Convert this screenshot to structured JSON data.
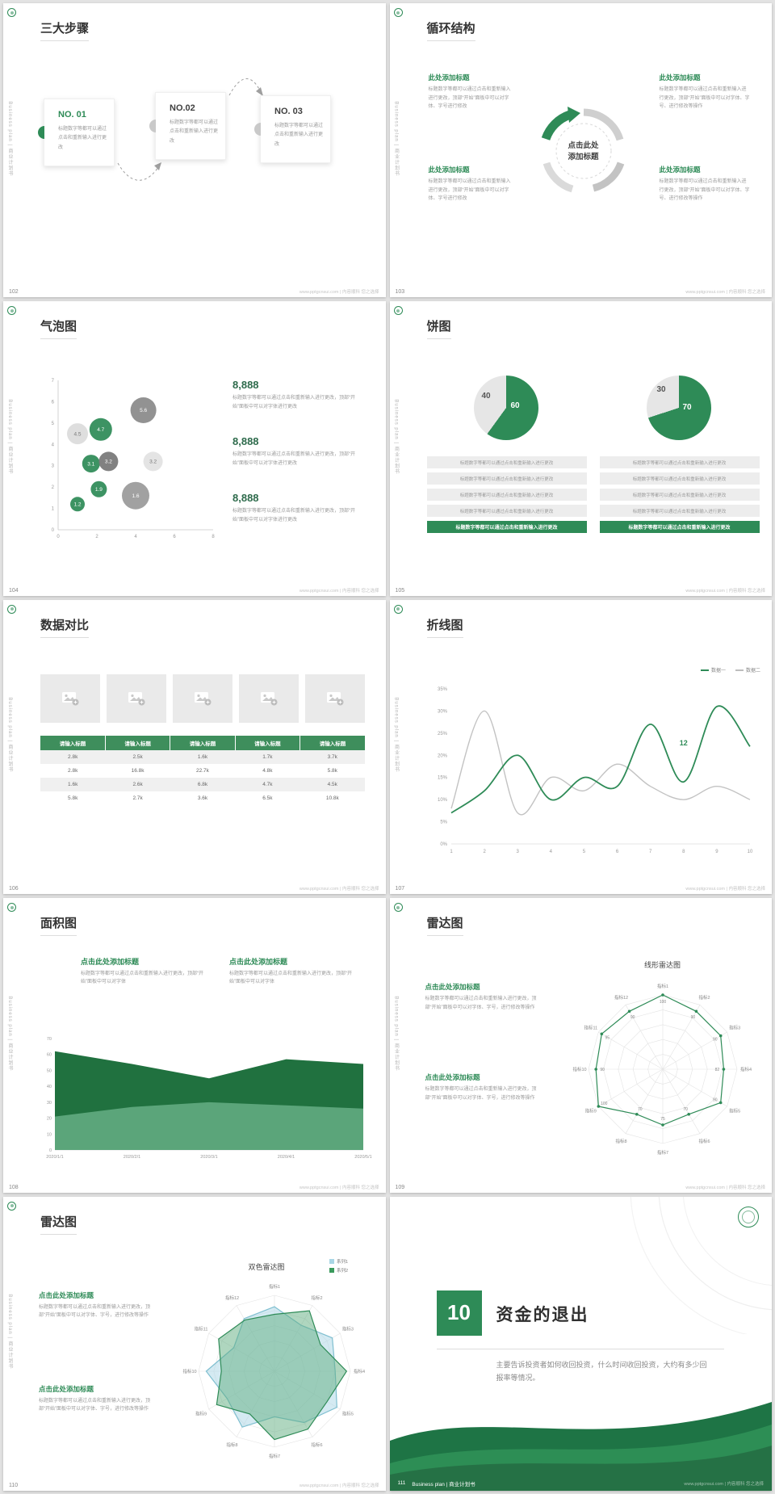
{
  "meta": {
    "accent": "#2e8b57",
    "sidebar_text": "Business plan | 商业计划书",
    "footer_site": "www.pptgcnsui.com | 内容顺科 您之选择"
  },
  "slides": {
    "s102": {
      "page": "102",
      "title": "三大步骤",
      "steps": [
        {
          "no": "NO. 01",
          "body": "标题数字等都可以通过点击和重新输入进行更改"
        },
        {
          "no": "NO.02",
          "body": "标题数字等都可以通过点击和重新输入进行更改"
        },
        {
          "no": "NO. 03",
          "body": "标题数字等都可以通过点击和重新输入进行更改"
        }
      ]
    },
    "s103": {
      "page": "103",
      "title": "循环结构",
      "center": "点击此处添加标题",
      "items": [
        {
          "head": "此处添加标题",
          "body": "标题数字等都可以通过点击和重新输入进行更改，顶部“开始”面板中可以对字体、字号进行修改"
        },
        {
          "head": "此处添加标题",
          "body": "标题数字等都可以通过点击和重新输入进行更改，顶部“开始”面板中可以对字体、字号进行修改"
        },
        {
          "head": "此处添加标题",
          "body": "标题数字等都可以通过点击和重新输入进行更改，顶部“开始”面板中可以对字体、字号、进行修改等操作"
        },
        {
          "head": "此处添加标题",
          "body": "标题数字等都可以通过点击和重新输入进行更改，顶部“开始”面板中可以对字体、字号、进行修改等操作"
        }
      ]
    },
    "s104": {
      "page": "104",
      "title": "气泡图",
      "stats": [
        {
          "value": "8,888",
          "body": "标题数字等都可以通过点击和重新输入进行更改，顶部“开始”面板中可以对字体进行更改"
        },
        {
          "value": "8,888",
          "body": "标题数字等都可以通过点击和重新输入进行更改，顶部“开始”面板中可以对字体进行更改"
        },
        {
          "value": "8,888",
          "body": "标题数字等都可以通过点击和重新输入进行更改，顶部“开始”面板中可以对字体进行更改"
        }
      ],
      "chart": {
        "type": "bubble",
        "xmax": 8,
        "ymax": 7,
        "bubbles": [
          {
            "x": 1.0,
            "y": 4.5,
            "r": 13,
            "v": "4.5",
            "c": "#dcdcdc",
            "tc": "#777777"
          },
          {
            "x": 2.2,
            "y": 4.7,
            "r": 14,
            "v": "4.7",
            "c": "#2e8b57",
            "tc": "#ffffff"
          },
          {
            "x": 4.4,
            "y": 5.6,
            "r": 16,
            "v": "5.6",
            "c": "#8a8a8a",
            "tc": "#ffffff"
          },
          {
            "x": 1.7,
            "y": 3.1,
            "r": 11,
            "v": "3.1",
            "c": "#2e8b57",
            "tc": "#ffffff"
          },
          {
            "x": 2.6,
            "y": 3.2,
            "r": 12,
            "v": "3.2",
            "c": "#777777",
            "tc": "#ffffff"
          },
          {
            "x": 4.9,
            "y": 3.2,
            "r": 12,
            "v": "3.2",
            "c": "#e2e2e2",
            "tc": "#777777"
          },
          {
            "x": 2.1,
            "y": 1.9,
            "r": 10,
            "v": "1.9",
            "c": "#2e8b57",
            "tc": "#ffffff"
          },
          {
            "x": 1.0,
            "y": 1.2,
            "r": 9,
            "v": "1.2",
            "c": "#2e8b57",
            "tc": "#ffffff"
          },
          {
            "x": 4.0,
            "y": 1.6,
            "r": 17,
            "v": "1.6",
            "c": "#9a9a9a",
            "tc": "#ffffff"
          }
        ]
      }
    },
    "s105": {
      "page": "105",
      "title": "饼图",
      "pies": [
        {
          "type": "pie",
          "pct": 60,
          "label_main": "60",
          "label_rest": "40"
        },
        {
          "type": "pie",
          "pct": 70,
          "label_main": "70",
          "label_rest": "30"
        }
      ],
      "bars": [
        [
          "标题数字等都可以通过点击和重新输入进行更改",
          "标题数字等都可以通过点击和重新输入进行更改",
          "标题数字等都可以通过点击和重新输入进行更改",
          "标题数字等都可以通过点击和重新输入进行更改",
          "标题数字等都可以通过点击和重新输入进行更改"
        ],
        [
          "标题数字等都可以通过点击和重新输入进行更改",
          "标题数字等都可以通过点击和重新输入进行更改",
          "标题数字等都可以通过点击和重新输入进行更改",
          "标题数字等都可以通过点击和重新输入进行更改",
          "标题数字等都可以通过点击和重新输入进行更改"
        ]
      ]
    },
    "s106": {
      "page": "106",
      "title": "数据对比",
      "table": {
        "headers": [
          "请输入标题",
          "请输入标题",
          "请输入标题",
          "请输入标题",
          "请输入标题"
        ],
        "rows": [
          [
            "2.8k",
            "2.5k",
            "1.6k",
            "1.7k",
            "3.7k"
          ],
          [
            "2.8k",
            "16.8k",
            "22.7k",
            "4.8k",
            "5.8k"
          ],
          [
            "1.6k",
            "2.6k",
            "6.8k",
            "4.7k",
            "4.5k"
          ],
          [
            "5.8k",
            "2.7k",
            "3.6k",
            "6.5k",
            "10.8k"
          ]
        ]
      }
    },
    "s107": {
      "page": "107",
      "title": "折线图",
      "chart": {
        "type": "line",
        "legend": [
          {
            "label": "数据一",
            "color": "#2e8b57"
          },
          {
            "label": "数据二",
            "color": "#bdbdbd"
          }
        ],
        "x": [
          "1",
          "2",
          "3",
          "4",
          "5",
          "6",
          "7",
          "8",
          "9",
          "10"
        ],
        "ymax": 35,
        "series1": [
          7,
          12,
          20,
          10,
          15,
          13,
          27,
          14,
          31,
          22
        ],
        "series2": [
          8,
          30,
          7,
          15,
          12,
          18,
          13,
          10,
          13,
          10
        ],
        "annotation": {
          "xi": 7,
          "y": 21,
          "text": "12"
        }
      }
    },
    "s108": {
      "page": "108",
      "title": "面积图",
      "blocks": [
        {
          "head": "点击此处添加标题",
          "body": "标题数字等都可以通过点击和重新输入进行更改，顶部“开始”面板中可以对字体"
        },
        {
          "head": "点击此处添加标题",
          "body": "标题数字等都可以通过点击和重新输入进行更改，顶部“开始”面板中可以对字体"
        }
      ],
      "chart": {
        "type": "area",
        "ymax": 70,
        "x": [
          "2020/1/1",
          "2020/2/1",
          "2020/3/1",
          "2020/4/1",
          "2020/5/1"
        ],
        "series1": [
          62,
          54,
          45,
          57,
          54
        ],
        "series2": [
          21,
          27,
          30,
          28,
          26
        ]
      }
    },
    "s109": {
      "page": "109",
      "title": "雷达图",
      "chart_title": "线形雷达图",
      "blocks": [
        {
          "head": "点击此处添加标题",
          "body": "标题数字等都可以通过点击和重新输入进行更改，顶部“开始”面板中可以对字体、字号，进行修改等操作"
        },
        {
          "head": "点击此处添加标题",
          "body": "标题数字等都可以通过点击和重新输入进行更改，顶部“开始”面板中可以对字体、字号，进行修改等操作"
        }
      ],
      "radar": {
        "type": "radar",
        "labels": [
          "指标1",
          "指标2",
          "指标3",
          "指标4",
          "指标5",
          "指标6",
          "指标7",
          "指标8",
          "指标9",
          "指标10",
          "指标11",
          "指标12"
        ],
        "max": 100,
        "values": [
          100,
          90,
          90,
          82,
          90,
          70,
          75,
          70,
          100,
          90,
          95,
          90
        ]
      }
    },
    "s110": {
      "page": "110",
      "title": "雷达图",
      "chart_title": "双色雷达图",
      "legend": [
        {
          "label": "系列1",
          "color": "#a9d6e5"
        },
        {
          "label": "系列2",
          "color": "#3a9a5c"
        }
      ],
      "blocks": [
        {
          "head": "点击此处添加标题",
          "body": "标题数字等都可以通过点击和重新输入进行更改，顶部“开始”面板中可以对字体、字号，进行修改等操作"
        },
        {
          "head": "点击此处添加标题",
          "body": "标题数字等都可以通过点击和重新输入进行更改，顶部“开始”面板中可以对字体、字号，进行修改等操作"
        }
      ],
      "radar": {
        "type": "radar",
        "labels": [
          "指标1",
          "指标2",
          "指标3",
          "指标4",
          "指标5",
          "指标6",
          "指标7",
          "指标8",
          "指标9",
          "指标10",
          "指标11",
          "指标12"
        ],
        "max": 100,
        "series1": [
          85,
          70,
          88,
          80,
          95,
          78,
          60,
          85,
          72,
          90,
          62,
          80
        ],
        "series2": [
          75,
          92,
          70,
          95,
          80,
          88,
          90,
          65,
          88,
          70,
          85,
          78
        ]
      }
    },
    "s111": {
      "page": "111",
      "number": "10",
      "title": "资金的退出",
      "body": "主要告诉投资者如何收回投资，什么时间收回投资，大约有多少回报率等情况。",
      "footer_brand": "Business plan | 商业计划书"
    }
  }
}
